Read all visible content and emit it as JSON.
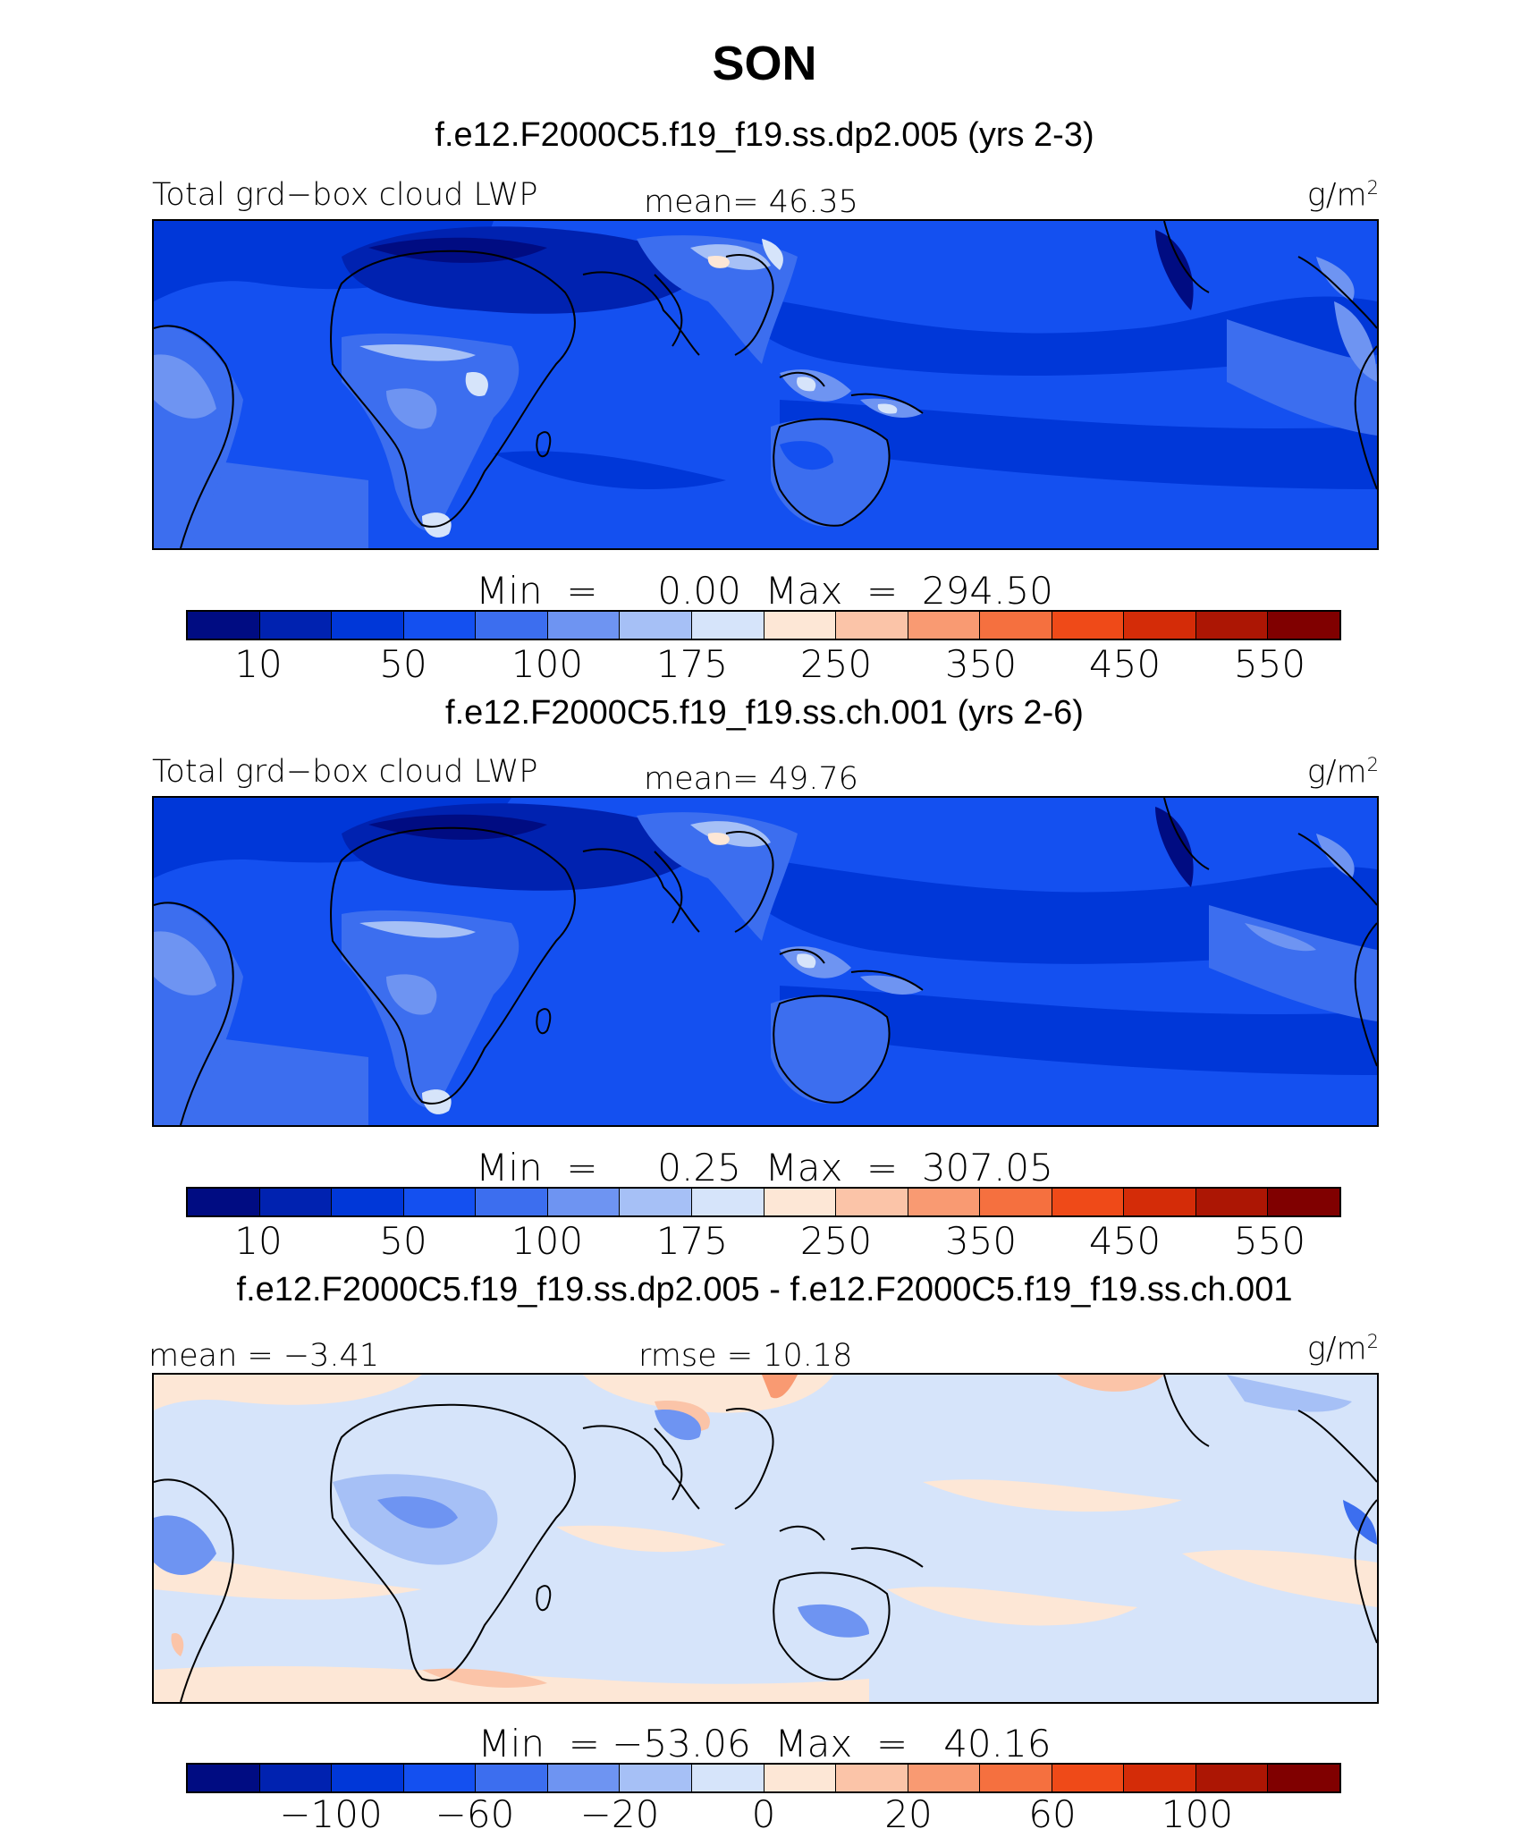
{
  "title": "SON",
  "colors": [
    "#000c82",
    "#0022b0",
    "#0037d8",
    "#1450f0",
    "#3c6eef",
    "#6e94f2",
    "#a6c0f6",
    "#d6e4fa",
    "#fde7d6",
    "#fbc4a8",
    "#f99a72",
    "#f5703f",
    "#ef4a18",
    "#d42c08",
    "#ac1604",
    "#800000"
  ],
  "panels": [
    {
      "subtitle": "f.e12.F2000C5.f19_f19.ss.dp2.005 (yrs 2-3)",
      "left_label": "Total grd−box cloud LWP",
      "center_label": "mean=  46.35",
      "units": "g/m",
      "units_sup": "2",
      "minmax": "Min  =     0.00  Max  =  294.50",
      "ticks": [
        "10",
        "50",
        "100",
        "175",
        "250",
        "350",
        "450",
        "550"
      ]
    },
    {
      "subtitle": "f.e12.F2000C5.f19_f19.ss.ch.001 (yrs 2-6)",
      "left_label": "Total grd−box cloud LWP",
      "center_label": "mean=  49.76",
      "units": "g/m",
      "units_sup": "2",
      "minmax": "Min  =     0.25  Max  =  307.05",
      "ticks": [
        "10",
        "50",
        "100",
        "175",
        "250",
        "350",
        "450",
        "550"
      ]
    },
    {
      "subtitle": "f.e12.F2000C5.f19_f19.ss.dp2.005 - f.e12.F2000C5.f19_f19.ss.ch.001",
      "left_label": "mean =  −3.41",
      "center_label": "rmse =   10.18",
      "units": "g/m",
      "units_sup": "2",
      "minmax": "Min  = −53.06  Max  =   40.16",
      "ticks": [
        "−100",
        "−60",
        "−20",
        "0",
        "20",
        "60",
        "100"
      ]
    }
  ]
}
